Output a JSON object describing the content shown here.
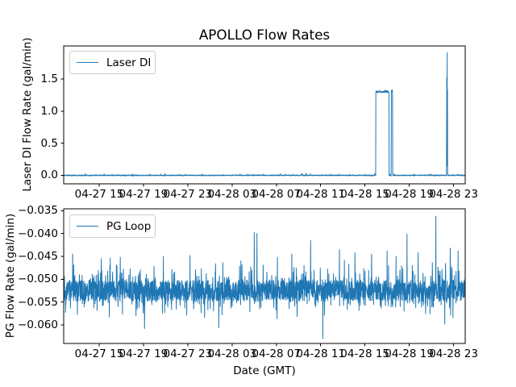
{
  "chart_data": [
    {
      "type": "line",
      "title": "APOLLO Flow Rates",
      "ylabel": "Laser DI Flow Rate (gal/min)",
      "xlabel": "",
      "legend": [
        "Laser DI"
      ],
      "legend_position": "upper left",
      "line_color": "#1f77b4",
      "grid": false,
      "xlim_hours": [
        0,
        36.25
      ],
      "x_tick_hours": [
        3.2,
        7.2,
        11.2,
        15.2,
        19.2,
        23.2,
        27.2,
        31.2,
        35.2
      ],
      "x_tick_labels": [
        "04-27 15",
        "04-27 19",
        "04-27 23",
        "04-28 03",
        "04-28 07",
        "04-28 11",
        "04-28 15",
        "04-28 19",
        "04-28 23"
      ],
      "ylim": [
        -0.132,
        2.013
      ],
      "y_ticks": [
        {
          "v": 0.0,
          "label": "0.0"
        },
        {
          "v": 0.5,
          "label": "0.5"
        },
        {
          "v": 1.0,
          "label": "1.0"
        },
        {
          "v": 1.5,
          "label": "1.5"
        }
      ],
      "series": [
        {
          "name": "Laser DI",
          "samples": 2000,
          "baseline": 0.0,
          "noise": {
            "band": 0.007,
            "up_p": 0.05,
            "up_min": 0.004,
            "up_max": 0.022,
            "down_p": 0.04,
            "down_min": 0.003,
            "down_max": 0.01
          },
          "plateaus": [
            {
              "start": 28.17,
              "end": 29.38,
              "value": 1.3
            },
            {
              "start": 29.58,
              "end": 29.7,
              "value": 1.31
            }
          ],
          "burst": {
            "points": [
              [
                34.56,
                0.0
              ],
              [
                34.585,
                1.52
              ],
              [
                34.6,
                0.15
              ],
              [
                34.62,
                1.91
              ],
              [
                34.635,
                0.25
              ],
              [
                34.65,
                1.33
              ],
              [
                34.665,
                0.0
              ]
            ]
          },
          "events": [
            {
              "at": 21.5,
              "value": 0.03
            },
            {
              "at": 21.9,
              "value": 0.035
            },
            {
              "at": 22.3,
              "value": 0.025
            }
          ],
          "summary": "Baseline ~0.0 gal/min; plateau ~1.30-1.32 gal/min from ~04-28 16:00 to ~04-28 17:10 plus brief ~1.31 pulse ~04-28 17:25; sharp spike peaking ~1.91 gal/min ~04-28 22:20"
        }
      ]
    },
    {
      "type": "line",
      "title": "",
      "ylabel": "PG Flow Rate (gal/min)",
      "xlabel": "Date (GMT)",
      "legend": [
        "PG Loop"
      ],
      "legend_position": "upper left",
      "line_color": "#1f77b4",
      "grid": false,
      "xlim_hours": [
        0,
        36.25
      ],
      "x_tick_hours": [
        3.2,
        7.2,
        11.2,
        15.2,
        19.2,
        23.2,
        27.2,
        31.2,
        35.2
      ],
      "x_tick_labels": [
        "04-27 15",
        "04-27 19",
        "04-27 23",
        "04-28 03",
        "04-28 07",
        "04-28 11",
        "04-28 15",
        "04-28 19",
        "04-28 23"
      ],
      "ylim": [
        -0.06406,
        -0.03459
      ],
      "y_ticks": [
        {
          "v": -0.035,
          "label": "−0.035"
        },
        {
          "v": -0.04,
          "label": "−0.040"
        },
        {
          "v": -0.045,
          "label": "−0.045"
        },
        {
          "v": -0.05,
          "label": "−0.050"
        },
        {
          "v": -0.055,
          "label": "−0.055"
        },
        {
          "v": -0.06,
          "label": "−0.060"
        }
      ],
      "series": [
        {
          "name": "PG Loop",
          "samples": 2200,
          "baseline": -0.0525,
          "noise": {
            "band": 0.0023,
            "up_p": 0.14,
            "up_min": 0.0008,
            "up_max": 0.005,
            "down_p": 0.14,
            "down_min": 0.0008,
            "down_max": 0.0042
          },
          "events": [
            {
              "at": 0.8,
              "value": -0.0445
            },
            {
              "at": 3.4,
              "value": -0.0455
            },
            {
              "at": 5.1,
              "value": -0.0452
            },
            {
              "at": 7.3,
              "value": -0.0608
            },
            {
              "at": 9.0,
              "value": -0.045
            },
            {
              "at": 11.4,
              "value": -0.0448
            },
            {
              "at": 14.0,
              "value": -0.0606
            },
            {
              "at": 16.0,
              "value": -0.046
            },
            {
              "at": 17.2,
              "value": -0.0398
            },
            {
              "at": 17.45,
              "value": -0.04
            },
            {
              "at": 19.3,
              "value": -0.0452
            },
            {
              "at": 20.6,
              "value": -0.0445
            },
            {
              "at": 22.3,
              "value": -0.0415
            },
            {
              "at": 23.4,
              "value": -0.063
            },
            {
              "at": 24.9,
              "value": -0.0435
            },
            {
              "at": 26.3,
              "value": -0.0442
            },
            {
              "at": 27.8,
              "value": -0.0445
            },
            {
              "at": 29.2,
              "value": -0.0438
            },
            {
              "at": 30.0,
              "value": -0.045
            },
            {
              "at": 31.0,
              "value": -0.0401
            },
            {
              "at": 32.0,
              "value": -0.0442
            },
            {
              "at": 33.6,
              "value": -0.0362
            },
            {
              "at": 34.4,
              "value": -0.0598
            },
            {
              "at": 34.9,
              "value": -0.0432
            },
            {
              "at": 35.6,
              "value": -0.0438
            }
          ],
          "summary": "Noisy signal centered ~-0.0525 gal/min, dense band -0.0545 to -0.0505, frequent spikes toward -0.045, extremes: -0.0362 (~04-28 21:20), -0.0398 (~04-28 05:00), deepest dip -0.063 (~04-28 11:10)"
        }
      ]
    }
  ]
}
